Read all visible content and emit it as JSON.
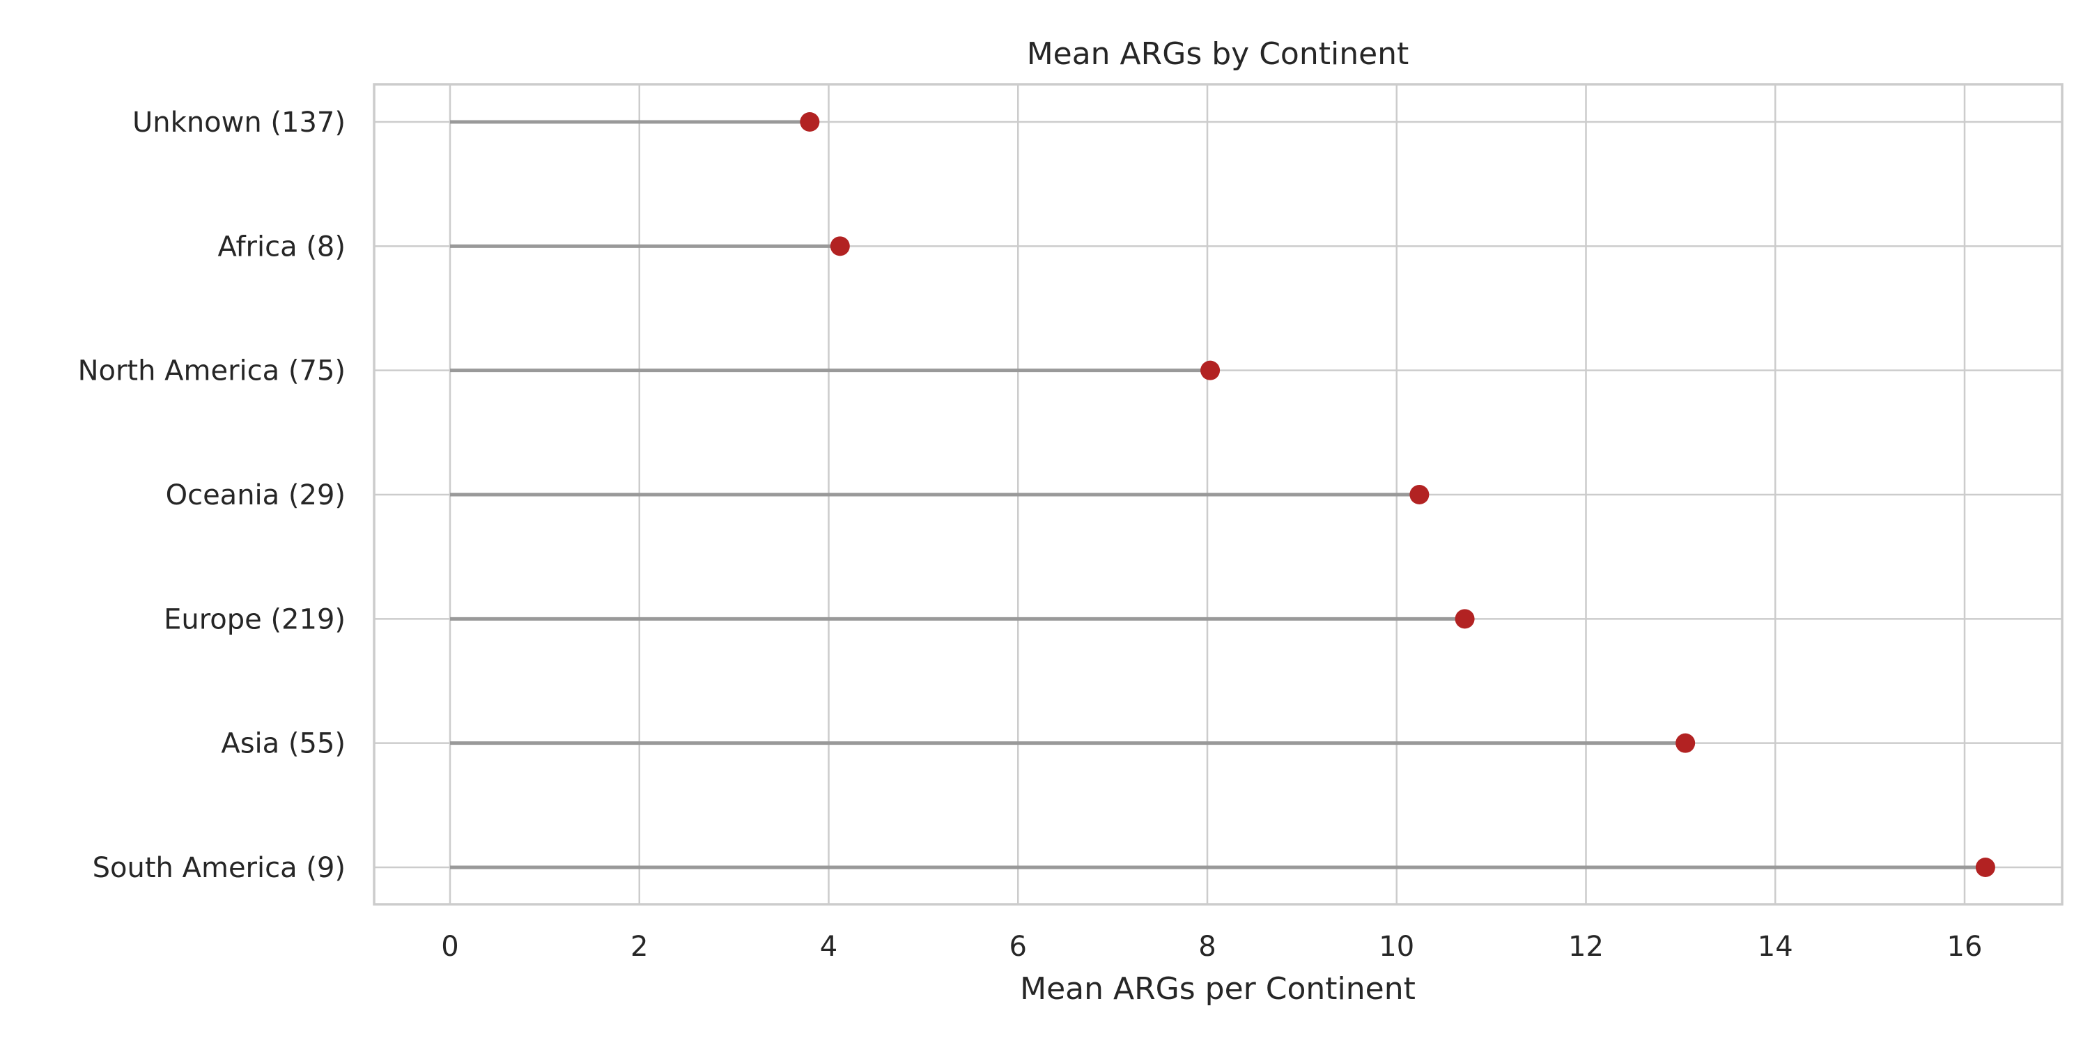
{
  "chart_data": {
    "type": "lollipop",
    "title": "Mean ARGs by Continent",
    "xlabel": "Mean ARGs per Continent",
    "ylabel": "",
    "xlim": [
      -0.8,
      17.0
    ],
    "xticks": [
      0,
      2,
      4,
      6,
      8,
      10,
      12,
      14,
      16
    ],
    "grid": true,
    "categories": [
      "Unknown (137)",
      "Africa (8)",
      "North America (75)",
      "Oceania (29)",
      "Europe (219)",
      "Asia (55)",
      "South America (9)"
    ],
    "values": [
      3.8,
      4.12,
      8.03,
      10.24,
      10.72,
      13.05,
      16.22
    ],
    "colors": {
      "marker": "#b22222",
      "stem": "#999999",
      "grid": "#cccccc"
    }
  }
}
